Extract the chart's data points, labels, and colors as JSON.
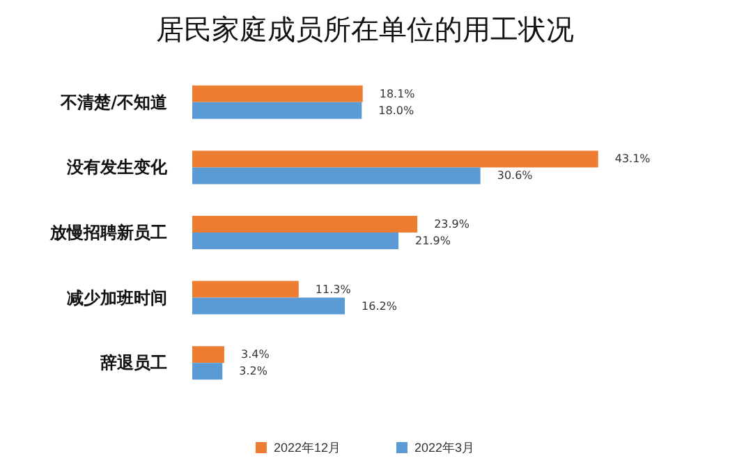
{
  "chart_data": {
    "type": "bar",
    "orientation": "horizontal",
    "title": "居民家庭成员所在单位的用工状况",
    "categories": [
      "不清楚/不知道",
      "没有发生变化",
      "放慢招聘新员工",
      "减少加班时间",
      "辞退员工"
    ],
    "series": [
      {
        "name": "2022年12月",
        "color": "#ed7d31",
        "values": [
          18.1,
          43.1,
          23.9,
          11.3,
          3.4
        ],
        "value_labels": [
          "18.1%",
          "43.1%",
          "23.9%",
          "11.3%",
          "3.4%"
        ]
      },
      {
        "name": "2022年3月",
        "color": "#5b9bd5",
        "values": [
          18.0,
          30.6,
          21.9,
          16.2,
          3.2
        ],
        "value_labels": [
          "18.0%",
          "30.6%",
          "21.9%",
          "16.2%",
          "3.2%"
        ]
      }
    ],
    "legend": "bottom",
    "tick_labels": "y"
  }
}
